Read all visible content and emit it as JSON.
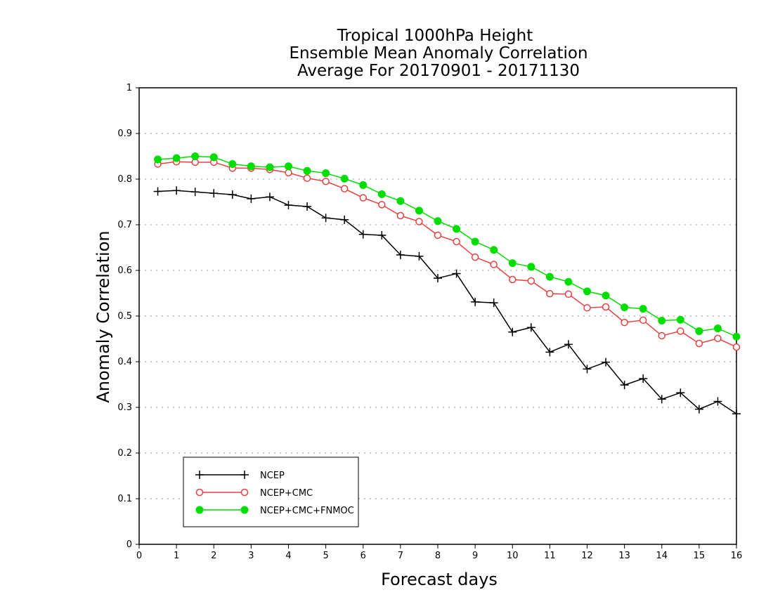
{
  "chart_data": {
    "type": "line",
    "title": [
      "Tropical 1000hPa Height",
      "Ensemble Mean Anomaly Correlation",
      "Average For 20170901 - 20171130"
    ],
    "xlabel": "Forecast days",
    "ylabel": "Anomaly Correlation",
    "xlim": [
      0,
      16
    ],
    "ylim": [
      0,
      1
    ],
    "x_ticks": [
      "0",
      "1",
      "2",
      "3",
      "4",
      "5",
      "6",
      "7",
      "8",
      "9",
      "10",
      "11",
      "12",
      "13",
      "14",
      "15",
      "16"
    ],
    "y_ticks": [
      "0",
      "0.1",
      "0.2",
      "0.3",
      "0.4",
      "0.5",
      "0.6",
      "0.7",
      "0.8",
      "0.9",
      "1"
    ],
    "grid": true,
    "legend_position": "bottom-left",
    "x": [
      0.5,
      1,
      1.5,
      2,
      2.5,
      3,
      3.5,
      4,
      4.5,
      5,
      5.5,
      6,
      6.5,
      7,
      7.5,
      8,
      8.5,
      9,
      9.5,
      10,
      10.5,
      11,
      11.5,
      12,
      12.5,
      13,
      13.5,
      14,
      14.5,
      15,
      15.5,
      16
    ],
    "series": [
      {
        "name": "NCEP",
        "color": "#000000",
        "marker": "plus",
        "values": [
          0.773,
          0.775,
          0.772,
          0.769,
          0.766,
          0.757,
          0.761,
          0.743,
          0.74,
          0.715,
          0.711,
          0.679,
          0.677,
          0.634,
          0.631,
          0.583,
          0.593,
          0.531,
          0.529,
          0.465,
          0.475,
          0.421,
          0.438,
          0.384,
          0.399,
          0.349,
          0.363,
          0.318,
          0.332,
          0.296,
          0.313,
          0.286
        ]
      },
      {
        "name": "NCEP+CMC",
        "color": "#e84040",
        "marker": "open-circle",
        "values": [
          0.833,
          0.838,
          0.837,
          0.837,
          0.824,
          0.824,
          0.821,
          0.814,
          0.802,
          0.795,
          0.779,
          0.759,
          0.744,
          0.72,
          0.707,
          0.677,
          0.663,
          0.629,
          0.613,
          0.58,
          0.577,
          0.549,
          0.548,
          0.518,
          0.52,
          0.486,
          0.491,
          0.457,
          0.467,
          0.44,
          0.451,
          0.432
        ]
      },
      {
        "name": "NCEP+CMC+FNMOC",
        "color": "#00dd00",
        "marker": "filled-circle",
        "values": [
          0.843,
          0.846,
          0.85,
          0.848,
          0.833,
          0.828,
          0.826,
          0.828,
          0.818,
          0.813,
          0.801,
          0.787,
          0.767,
          0.752,
          0.731,
          0.708,
          0.691,
          0.663,
          0.645,
          0.616,
          0.608,
          0.586,
          0.575,
          0.554,
          0.545,
          0.519,
          0.516,
          0.49,
          0.492,
          0.467,
          0.473,
          0.455
        ]
      }
    ]
  }
}
